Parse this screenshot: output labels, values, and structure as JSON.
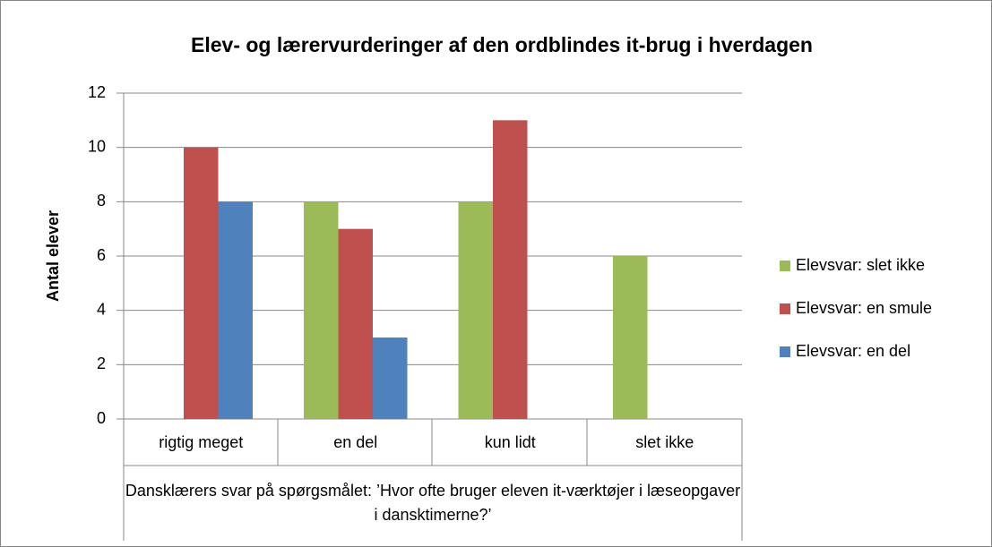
{
  "chart_data": {
    "type": "bar",
    "title": "Elev- og lærervurderinger af den ordblindes it-brug i hverdagen",
    "y_label": "Antal elever",
    "x_label": "Dansklærers svar på spørgsmålet: ’Hvor ofte bruger eleven it-værktøjer i læseopgaver i dansktimerne?’",
    "categories": [
      "rigtig meget",
      "en del",
      "kun lidt",
      "slet ikke"
    ],
    "series": [
      {
        "name": "Elevsvar: slet ikke",
        "color": "#9bbb59",
        "values": [
          0,
          8,
          8,
          6
        ]
      },
      {
        "name": "Elevsvar: en smule",
        "color": "#c0504d",
        "values": [
          10,
          7,
          11,
          0
        ]
      },
      {
        "name": "Elevsvar: en del",
        "color": "#4f81bd",
        "values": [
          8,
          3,
          0,
          0
        ]
      }
    ],
    "ylim": [
      0,
      12
    ],
    "yticks": [
      0,
      2,
      4,
      6,
      8,
      10,
      12
    ],
    "grid": true,
    "legend": "right"
  }
}
